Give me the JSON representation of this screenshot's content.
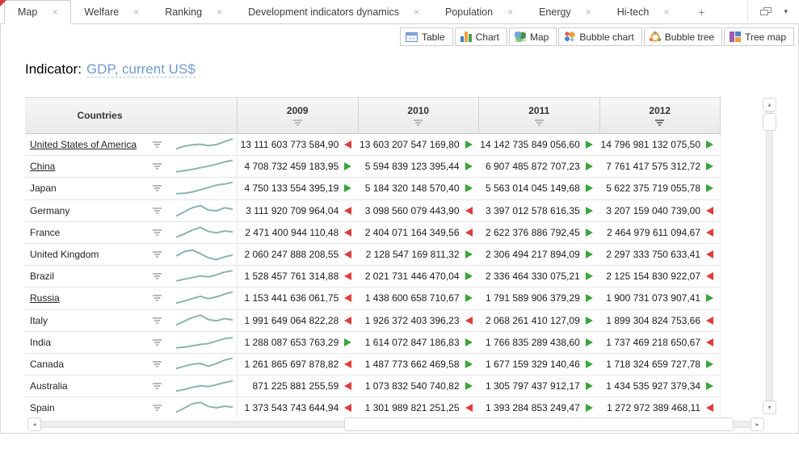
{
  "tabbar": {
    "tabs": [
      {
        "label": "Map",
        "active": true
      },
      {
        "label": "Welfare",
        "active": false
      },
      {
        "label": "Ranking",
        "active": false
      },
      {
        "label": "Development indicators dynamics",
        "active": false
      },
      {
        "label": "Population",
        "active": false
      },
      {
        "label": "Energy",
        "active": false
      },
      {
        "label": "Hi-tech",
        "active": false
      }
    ],
    "close_glyph": "×",
    "add_label": "+",
    "menu_caret": "▾"
  },
  "toolbar": {
    "views": [
      {
        "label": "Table",
        "icon": "table-icon"
      },
      {
        "label": "Chart",
        "icon": "chart-icon"
      },
      {
        "label": "Map",
        "icon": "map-icon"
      },
      {
        "label": "Bubble chart",
        "icon": "bubble-chart-icon"
      },
      {
        "label": "Bubble tree",
        "icon": "bubble-tree-icon"
      },
      {
        "label": "Tree map",
        "icon": "tree-map-icon"
      }
    ]
  },
  "indicator": {
    "label": "Indicator:",
    "value": "GDP, current US$"
  },
  "table": {
    "countries_header": "Countries",
    "year_columns": [
      {
        "label": "2009",
        "filter_active": false
      },
      {
        "label": "2010",
        "filter_active": false
      },
      {
        "label": "2011",
        "filter_active": false
      },
      {
        "label": "2012",
        "filter_active": true
      }
    ],
    "rows": [
      {
        "country": "United States of America",
        "underlined": true,
        "sparkline": [
          0.18,
          0.38,
          0.48,
          0.52,
          0.42,
          0.5,
          0.72,
          0.92
        ],
        "values": [
          {
            "text": "13 111 603 773 584,90",
            "trend": "down"
          },
          {
            "text": "13 603 207 547 169,80",
            "trend": "up"
          },
          {
            "text": "14 142 735 849 056,60",
            "trend": "up"
          },
          {
            "text": "14 796 981 132 075,50",
            "trend": "up"
          }
        ]
      },
      {
        "country": "China",
        "underlined": true,
        "sparkline": [
          0.1,
          0.18,
          0.28,
          0.4,
          0.52,
          0.66,
          0.82,
          0.95
        ],
        "values": [
          {
            "text": "4 708 732 459 183,95",
            "trend": "up"
          },
          {
            "text": "5 594 839 123 395,44",
            "trend": "up"
          },
          {
            "text": "6 907 485 872 707,23",
            "trend": "up"
          },
          {
            "text": "7 761 417 575 312,72",
            "trend": "up"
          }
        ]
      },
      {
        "country": "Japan",
        "underlined": false,
        "sparkline": [
          0.1,
          0.12,
          0.22,
          0.38,
          0.55,
          0.72,
          0.8,
          0.93
        ],
        "values": [
          {
            "text": "4 750 133 554 395,19",
            "trend": "up"
          },
          {
            "text": "5 184 320 148 570,40",
            "trend": "up"
          },
          {
            "text": "5 563 014 045 149,68",
            "trend": "up"
          },
          {
            "text": "5 622 375 719 055,78",
            "trend": "up"
          }
        ]
      },
      {
        "country": "Germany",
        "underlined": false,
        "sparkline": [
          0.12,
          0.42,
          0.72,
          0.88,
          0.55,
          0.5,
          0.72,
          0.62
        ],
        "values": [
          {
            "text": "3 111 920 709 964,04",
            "trend": "down"
          },
          {
            "text": "3 098 560 079 443,90",
            "trend": "down"
          },
          {
            "text": "3 397 012 578 616,35",
            "trend": "up"
          },
          {
            "text": "3 207 159 040 739,00",
            "trend": "down"
          }
        ]
      },
      {
        "country": "France",
        "underlined": false,
        "sparkline": [
          0.15,
          0.4,
          0.68,
          0.88,
          0.58,
          0.48,
          0.62,
          0.55
        ],
        "values": [
          {
            "text": "2 471 400 944 110,48",
            "trend": "down"
          },
          {
            "text": "2 404 071 164 349,56",
            "trend": "down"
          },
          {
            "text": "2 622 376 886 792,45",
            "trend": "up"
          },
          {
            "text": "2 464 979 611 094,67",
            "trend": "down"
          }
        ]
      },
      {
        "country": "United Kingdom",
        "underlined": false,
        "sparkline": [
          0.38,
          0.7,
          0.82,
          0.55,
          0.25,
          0.12,
          0.32,
          0.45
        ],
        "values": [
          {
            "text": "2 060 247 888 208,55",
            "trend": "down"
          },
          {
            "text": "2 128 547 169 811,32",
            "trend": "up"
          },
          {
            "text": "2 306 494 217 894,09",
            "trend": "up"
          },
          {
            "text": "2 297 333 750 633,41",
            "trend": "down"
          }
        ]
      },
      {
        "country": "Brazil",
        "underlined": false,
        "sparkline": [
          0.15,
          0.28,
          0.4,
          0.52,
          0.45,
          0.6,
          0.8,
          0.9
        ],
        "values": [
          {
            "text": "1 528 457 761 314,88",
            "trend": "down"
          },
          {
            "text": "2 021 731 446 470,04",
            "trend": "up"
          },
          {
            "text": "2 336 464 330 075,21",
            "trend": "up"
          },
          {
            "text": "2 125 154 830 922,07",
            "trend": "down"
          }
        ]
      },
      {
        "country": "Russia",
        "underlined": true,
        "sparkline": [
          0.12,
          0.28,
          0.45,
          0.62,
          0.45,
          0.58,
          0.78,
          0.95
        ],
        "values": [
          {
            "text": "1 153 441 636 061,75",
            "trend": "down"
          },
          {
            "text": "1 438 600 658 710,67",
            "trend": "up"
          },
          {
            "text": "1 791 589 906 379,29",
            "trend": "up"
          },
          {
            "text": "1 900 731 073 907,41",
            "trend": "up"
          }
        ]
      },
      {
        "country": "Italy",
        "underlined": false,
        "sparkline": [
          0.18,
          0.45,
          0.72,
          0.9,
          0.58,
          0.48,
          0.65,
          0.55
        ],
        "values": [
          {
            "text": "1 991 649 064 822,28",
            "trend": "down"
          },
          {
            "text": "1 926 372 403 396,23",
            "trend": "down"
          },
          {
            "text": "2 068 261 410 127,09",
            "trend": "up"
          },
          {
            "text": "1 899 304 824 753,66",
            "trend": "down"
          }
        ]
      },
      {
        "country": "India",
        "underlined": false,
        "sparkline": [
          0.1,
          0.15,
          0.25,
          0.35,
          0.42,
          0.6,
          0.78,
          0.85
        ],
        "values": [
          {
            "text": "1 288 087 653 763,29",
            "trend": "up"
          },
          {
            "text": "1 614 072 847 186,83",
            "trend": "up"
          },
          {
            "text": "1 766 835 289 438,60",
            "trend": "up"
          },
          {
            "text": "1 737 469 218 650,67",
            "trend": "down"
          }
        ]
      },
      {
        "country": "Canada",
        "underlined": false,
        "sparkline": [
          0.18,
          0.35,
          0.5,
          0.55,
          0.35,
          0.55,
          0.8,
          0.95
        ],
        "values": [
          {
            "text": "1 261 865 697 878,82",
            "trend": "down"
          },
          {
            "text": "1 487 773 662 469,58",
            "trend": "up"
          },
          {
            "text": "1 677 159 329 140,46",
            "trend": "up"
          },
          {
            "text": "1 718 324 659 727,78",
            "trend": "up"
          }
        ]
      },
      {
        "country": "Australia",
        "underlined": false,
        "sparkline": [
          0.12,
          0.25,
          0.4,
          0.52,
          0.46,
          0.6,
          0.75,
          0.88
        ],
        "values": [
          {
            "text": "871 225 881 255,59",
            "trend": "down"
          },
          {
            "text": "1 073 832 540 740,82",
            "trend": "up"
          },
          {
            "text": "1 305 797 437 912,17",
            "trend": "up"
          },
          {
            "text": "1 434 535 927 379,34",
            "trend": "up"
          }
        ]
      },
      {
        "country": "Spain",
        "underlined": false,
        "sparkline": [
          0.18,
          0.48,
          0.8,
          0.9,
          0.6,
          0.5,
          0.62,
          0.55
        ],
        "values": [
          {
            "text": "1 373 543 743 644,94",
            "trend": "down"
          },
          {
            "text": "1 301 989 821 251,25",
            "trend": "down"
          },
          {
            "text": "1 393 284 853 249,47",
            "trend": "up"
          },
          {
            "text": "1 272 972 389 468,11",
            "trend": "down"
          }
        ]
      }
    ]
  },
  "scrollbars": {
    "up": "▴",
    "down": "▾",
    "left": "◂",
    "right": "▸"
  },
  "colors": {
    "trend_up": "#3aa53a",
    "trend_down": "#e23b3b",
    "sparkline": "#8ab5ac",
    "link": "#6f9ad0"
  }
}
